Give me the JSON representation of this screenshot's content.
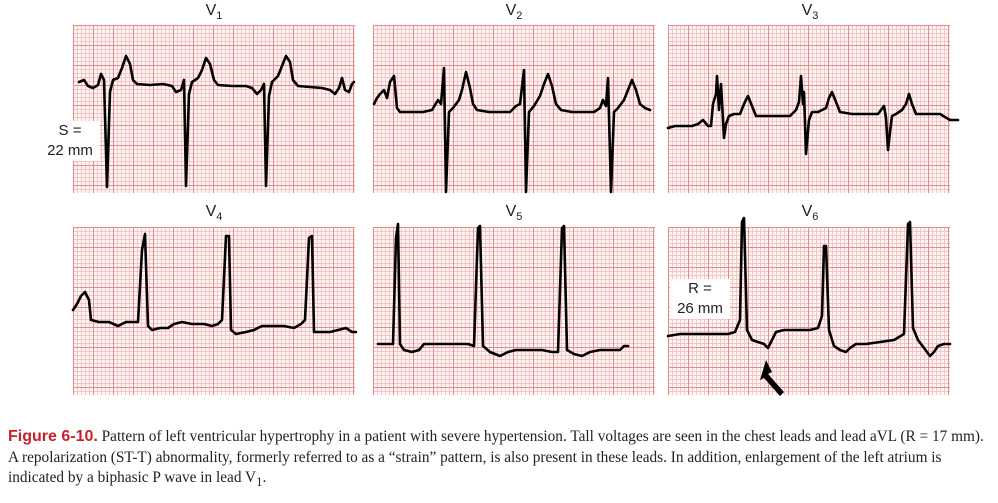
{
  "leads": [
    {
      "name": "V",
      "sub": "1"
    },
    {
      "name": "V",
      "sub": "2"
    },
    {
      "name": "V",
      "sub": "3"
    },
    {
      "name": "V",
      "sub": "4"
    },
    {
      "name": "V",
      "sub": "5"
    },
    {
      "name": "V",
      "sub": "6"
    }
  ],
  "annotations": {
    "s_line1": "S =",
    "s_line2": "22 mm",
    "r_line1": "R =",
    "r_line2": "26 mm"
  },
  "caption": {
    "label": "Figure 6-10.",
    "text": "Pattern of left ventricular hypertrophy in a patient with severe hypertension. Tall voltages are seen in the chest leads and lead aVL (R = 17 mm). A repolarization (ST-T) abnormality, formerly referred to as a “strain” pattern, is also present in these leads. In addition, enlargement of the left atrium is indicated by a biphasic P wave in lead V",
    "sub": "1",
    "end": "."
  },
  "colors": {
    "grid_major": "#e88a8a",
    "grid_minor": "#f5c6c6",
    "trace": "#000000",
    "figure_label": "#c8202a"
  }
}
